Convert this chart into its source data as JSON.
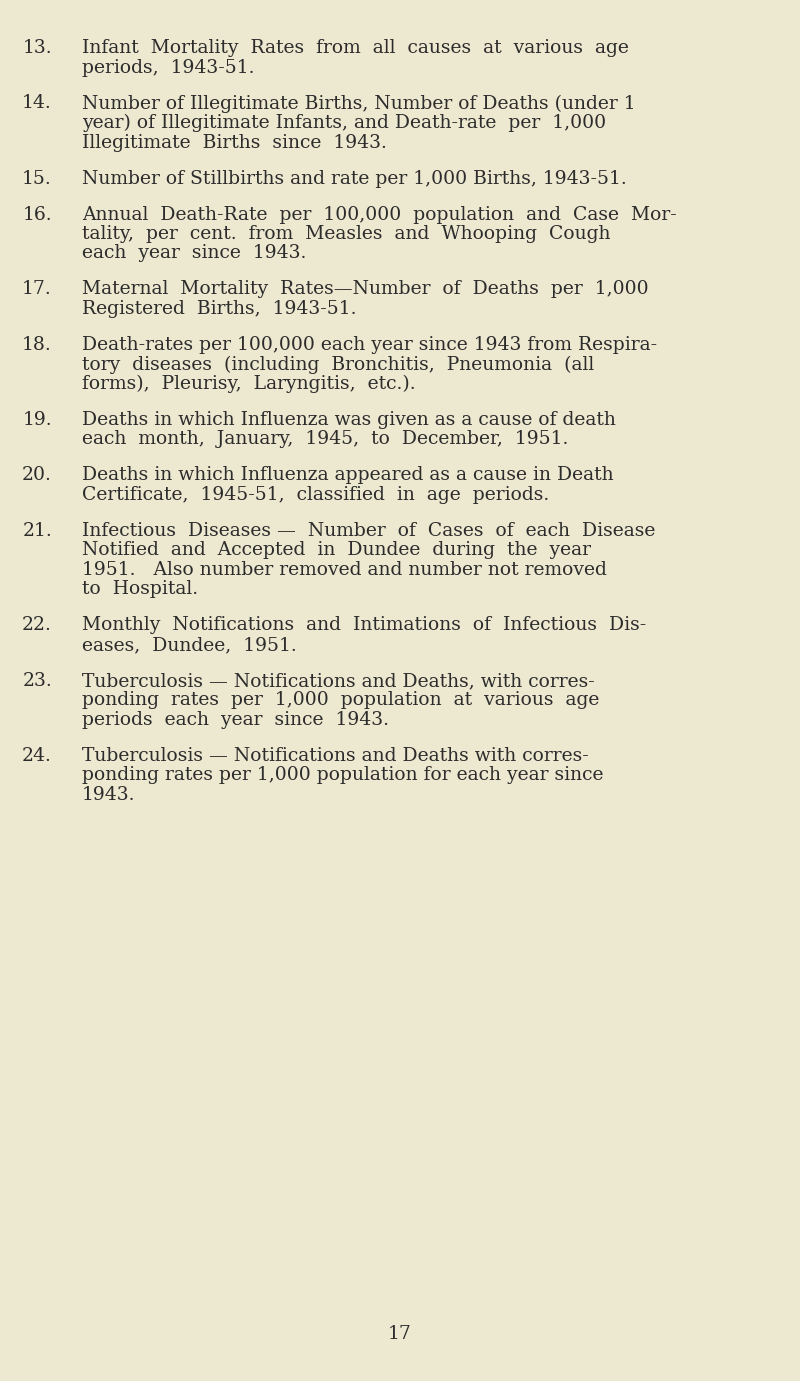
{
  "background_color": "#ede8d0",
  "text_color": "#2c2c2c",
  "page_number": "17",
  "font_size_main": 13.5,
  "font_size_page": 13.5,
  "items": [
    {
      "number": "13.",
      "lines": [
        "Infant  Mortality  Rates  from  all  causes  at  various  age",
        "periods,  1943-51."
      ],
      "indent": true
    },
    {
      "number": "14.",
      "lines": [
        "Number of Illegitimate Births, Number of Deaths (under 1",
        "year) of Illegitimate Infants, and Death-rate  per  1,000",
        "Illegitimate  Births  since  1943."
      ],
      "indent": true
    },
    {
      "number": "15.",
      "lines": [
        "Number of Stillbirths and rate per 1,000 Births, 1943-51."
      ],
      "indent": true
    },
    {
      "number": "16.",
      "lines": [
        "Annual  Death-Rate  per  100,000  population  and  Case  Mor-",
        "tality,  per  cent.  from  Measles  and  Whooping  Cough",
        "each  year  since  1943."
      ],
      "indent": true
    },
    {
      "number": "17.",
      "lines": [
        "Maternal  Mortality  Rates—Number  of  Deaths  per  1,000",
        "Registered  Births,  1943-51."
      ],
      "indent": true
    },
    {
      "number": "18.",
      "lines": [
        "Death-rates per 100,000 each year since 1943 from Respira-",
        "tory  diseases  (including  Bronchitis,  Pneumonia  (all",
        "forms),  Pleurisy,  Laryngitis,  etc.)."
      ],
      "indent": true
    },
    {
      "number": "19.",
      "lines": [
        "Deaths in which Influenza was given as a cause of death",
        "each  month,  January,  1945,  to  December,  1951."
      ],
      "indent": true
    },
    {
      "number": "20.",
      "lines": [
        "Deaths in which Influenza appeared as a cause in Death",
        "Certificate,  1945-51,  classified  in  age  periods."
      ],
      "indent": true
    },
    {
      "number": "21.",
      "lines": [
        "Infectious  Diseases —  Number  of  Cases  of  each  Disease",
        "Notified  and  Accepted  in  Dundee  during  the  year",
        "1951.   Also number removed and number not removed",
        "to  Hospital."
      ],
      "indent": true
    },
    {
      "number": "22.",
      "lines": [
        "Monthly  Notifications  and  Intimations  of  Infectious  Dis-",
        "eases,  Dundee,  1951."
      ],
      "indent": true
    },
    {
      "number": "23.",
      "lines": [
        "Tuberculosis — Notifications and Deaths, with corres-",
        "ponding  rates  per  1,000  population  at  various  age",
        "periods  each  year  since  1943."
      ],
      "indent": true
    },
    {
      "number": "24.",
      "lines": [
        "Tuberculosis — Notifications and Deaths with corres-",
        "ponding rates per 1,000 population for each year since",
        "1943."
      ],
      "indent": true
    }
  ]
}
